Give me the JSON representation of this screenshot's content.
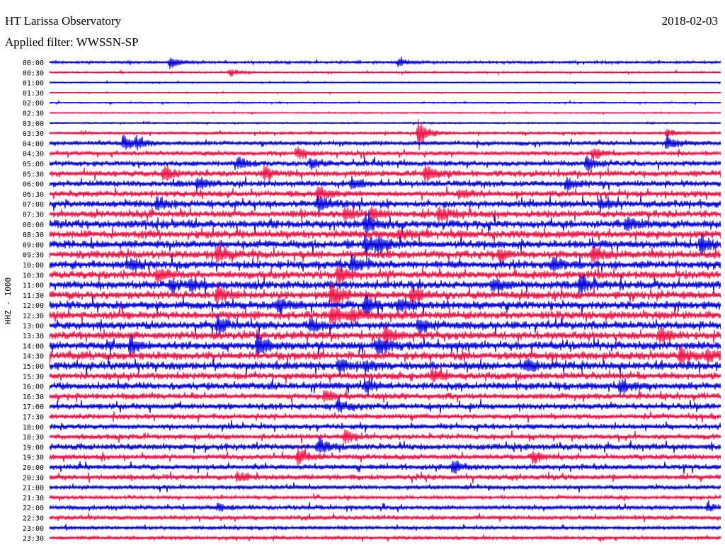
{
  "header": {
    "title": "HT Larissa Observatory",
    "date": "2018-02-03",
    "filter": "Applied filter: WWSSN-SP"
  },
  "chart_data": {
    "type": "line",
    "title": "HT Larissa Observatory",
    "ylabel": "HHZ - 1000",
    "colors": [
      "#0000dd",
      "#ee1144"
    ],
    "row_labels": [
      "00:00",
      "00:30",
      "01:00",
      "01:30",
      "02:00",
      "02:30",
      "03:00",
      "03:30",
      "04:00",
      "04:30",
      "05:00",
      "05:30",
      "06:00",
      "06:30",
      "07:00",
      "07:30",
      "08:00",
      "08:30",
      "09:00",
      "09:30",
      "10:00",
      "10:30",
      "11:00",
      "11:30",
      "12:00",
      "12:30",
      "13:00",
      "13:30",
      "14:00",
      "14:30",
      "15:00",
      "15:30",
      "16:00",
      "16:30",
      "17:00",
      "17:30",
      "18:00",
      "18:30",
      "19:00",
      "19:30",
      "20:00",
      "20:30",
      "21:00",
      "21:30",
      "22:00",
      "22:30",
      "23:00",
      "23:30"
    ],
    "noise_level": [
      1.5,
      1,
      0.7,
      0.6,
      0.8,
      0.7,
      0.8,
      1.5,
      2.5,
      2.5,
      3,
      3.5,
      3.5,
      3.5,
      4,
      4,
      4.5,
      4.5,
      4.5,
      4.5,
      4.5,
      4.5,
      4.5,
      4.5,
      4.5,
      4.5,
      4.5,
      4.5,
      4.5,
      4.5,
      4.5,
      4,
      4,
      3.5,
      3.5,
      3,
      3,
      3,
      3.5,
      3,
      3,
      3,
      2.5,
      2,
      2.5,
      2.5,
      2,
      2
    ],
    "events": [
      {
        "row": 0,
        "x": 0.18,
        "amp": 12
      },
      {
        "row": 0,
        "x": 0.52,
        "amp": 8
      },
      {
        "row": 1,
        "x": 0.27,
        "amp": 7
      },
      {
        "row": 7,
        "x": 0.55,
        "amp": 28
      },
      {
        "row": 7,
        "x": 0.92,
        "amp": 8
      },
      {
        "row": 8,
        "x": 0.11,
        "amp": 14
      },
      {
        "row": 8,
        "x": 0.13,
        "amp": 10
      },
      {
        "row": 8,
        "x": 0.92,
        "amp": 14
      },
      {
        "row": 9,
        "x": 0.37,
        "amp": 12
      },
      {
        "row": 9,
        "x": 0.81,
        "amp": 12
      },
      {
        "row": 10,
        "x": 0.28,
        "amp": 12
      },
      {
        "row": 10,
        "x": 0.39,
        "amp": 10
      },
      {
        "row": 10,
        "x": 0.8,
        "amp": 12
      },
      {
        "row": 11,
        "x": 0.17,
        "amp": 14
      },
      {
        "row": 11,
        "x": 0.32,
        "amp": 10
      },
      {
        "row": 11,
        "x": 0.56,
        "amp": 16
      },
      {
        "row": 12,
        "x": 0.22,
        "amp": 12
      },
      {
        "row": 12,
        "x": 0.45,
        "amp": 12
      },
      {
        "row": 12,
        "x": 0.77,
        "amp": 10
      },
      {
        "row": 13,
        "x": 0.4,
        "amp": 12
      },
      {
        "row": 13,
        "x": 0.61,
        "amp": 10
      },
      {
        "row": 14,
        "x": 0.16,
        "amp": 10
      },
      {
        "row": 14,
        "x": 0.4,
        "amp": 14
      },
      {
        "row": 14,
        "x": 0.82,
        "amp": 10
      },
      {
        "row": 15,
        "x": 0.44,
        "amp": 10
      },
      {
        "row": 15,
        "x": 0.48,
        "amp": 12
      },
      {
        "row": 15,
        "x": 0.58,
        "amp": 14
      },
      {
        "row": 16,
        "x": 0.47,
        "amp": 14
      },
      {
        "row": 16,
        "x": 0.86,
        "amp": 12
      },
      {
        "row": 17,
        "x": 0.52,
        "amp": 10
      },
      {
        "row": 18,
        "x": 0.47,
        "amp": 16
      },
      {
        "row": 18,
        "x": 0.49,
        "amp": 12
      },
      {
        "row": 18,
        "x": 0.97,
        "amp": 14
      },
      {
        "row": 19,
        "x": 0.25,
        "amp": 14
      },
      {
        "row": 19,
        "x": 0.67,
        "amp": 12
      },
      {
        "row": 19,
        "x": 0.81,
        "amp": 16
      },
      {
        "row": 20,
        "x": 0.12,
        "amp": 10
      },
      {
        "row": 20,
        "x": 0.45,
        "amp": 12
      },
      {
        "row": 20,
        "x": 0.75,
        "amp": 10
      },
      {
        "row": 21,
        "x": 0.16,
        "amp": 12
      },
      {
        "row": 21,
        "x": 0.43,
        "amp": 20
      },
      {
        "row": 22,
        "x": 0.18,
        "amp": 10
      },
      {
        "row": 22,
        "x": 0.21,
        "amp": 10
      },
      {
        "row": 22,
        "x": 0.66,
        "amp": 12
      },
      {
        "row": 22,
        "x": 0.79,
        "amp": 16
      },
      {
        "row": 23,
        "x": 0.25,
        "amp": 16
      },
      {
        "row": 23,
        "x": 0.42,
        "amp": 22
      },
      {
        "row": 23,
        "x": 0.54,
        "amp": 14
      },
      {
        "row": 24,
        "x": 0.34,
        "amp": 12
      },
      {
        "row": 24,
        "x": 0.47,
        "amp": 14
      },
      {
        "row": 24,
        "x": 0.52,
        "amp": 10
      },
      {
        "row": 25,
        "x": 0.42,
        "amp": 20
      },
      {
        "row": 25,
        "x": 0.45,
        "amp": 12
      },
      {
        "row": 26,
        "x": 0.25,
        "amp": 14
      },
      {
        "row": 26,
        "x": 0.39,
        "amp": 10
      },
      {
        "row": 26,
        "x": 0.55,
        "amp": 10
      },
      {
        "row": 27,
        "x": 0.5,
        "amp": 16
      },
      {
        "row": 27,
        "x": 0.91,
        "amp": 12
      },
      {
        "row": 28,
        "x": 0.12,
        "amp": 14
      },
      {
        "row": 28,
        "x": 0.31,
        "amp": 20
      },
      {
        "row": 28,
        "x": 0.49,
        "amp": 14
      },
      {
        "row": 29,
        "x": 0.94,
        "amp": 16
      },
      {
        "row": 29,
        "x": 0.98,
        "amp": 10
      },
      {
        "row": 30,
        "x": 0.43,
        "amp": 12
      },
      {
        "row": 30,
        "x": 0.47,
        "amp": 10
      },
      {
        "row": 30,
        "x": 0.71,
        "amp": 12
      },
      {
        "row": 31,
        "x": 0.57,
        "amp": 12
      },
      {
        "row": 32,
        "x": 0.47,
        "amp": 10
      },
      {
        "row": 32,
        "x": 0.85,
        "amp": 12
      },
      {
        "row": 33,
        "x": 0.41,
        "amp": 10
      },
      {
        "row": 34,
        "x": 0.43,
        "amp": 12
      },
      {
        "row": 37,
        "x": 0.44,
        "amp": 12
      },
      {
        "row": 38,
        "x": 0.4,
        "amp": 16
      },
      {
        "row": 39,
        "x": 0.37,
        "amp": 16
      },
      {
        "row": 39,
        "x": 0.72,
        "amp": 12
      },
      {
        "row": 40,
        "x": 0.6,
        "amp": 10
      },
      {
        "row": 41,
        "x": 0.28,
        "amp": 8
      },
      {
        "row": 44,
        "x": 0.25,
        "amp": 6
      },
      {
        "row": 44,
        "x": 0.98,
        "amp": 6
      }
    ]
  }
}
